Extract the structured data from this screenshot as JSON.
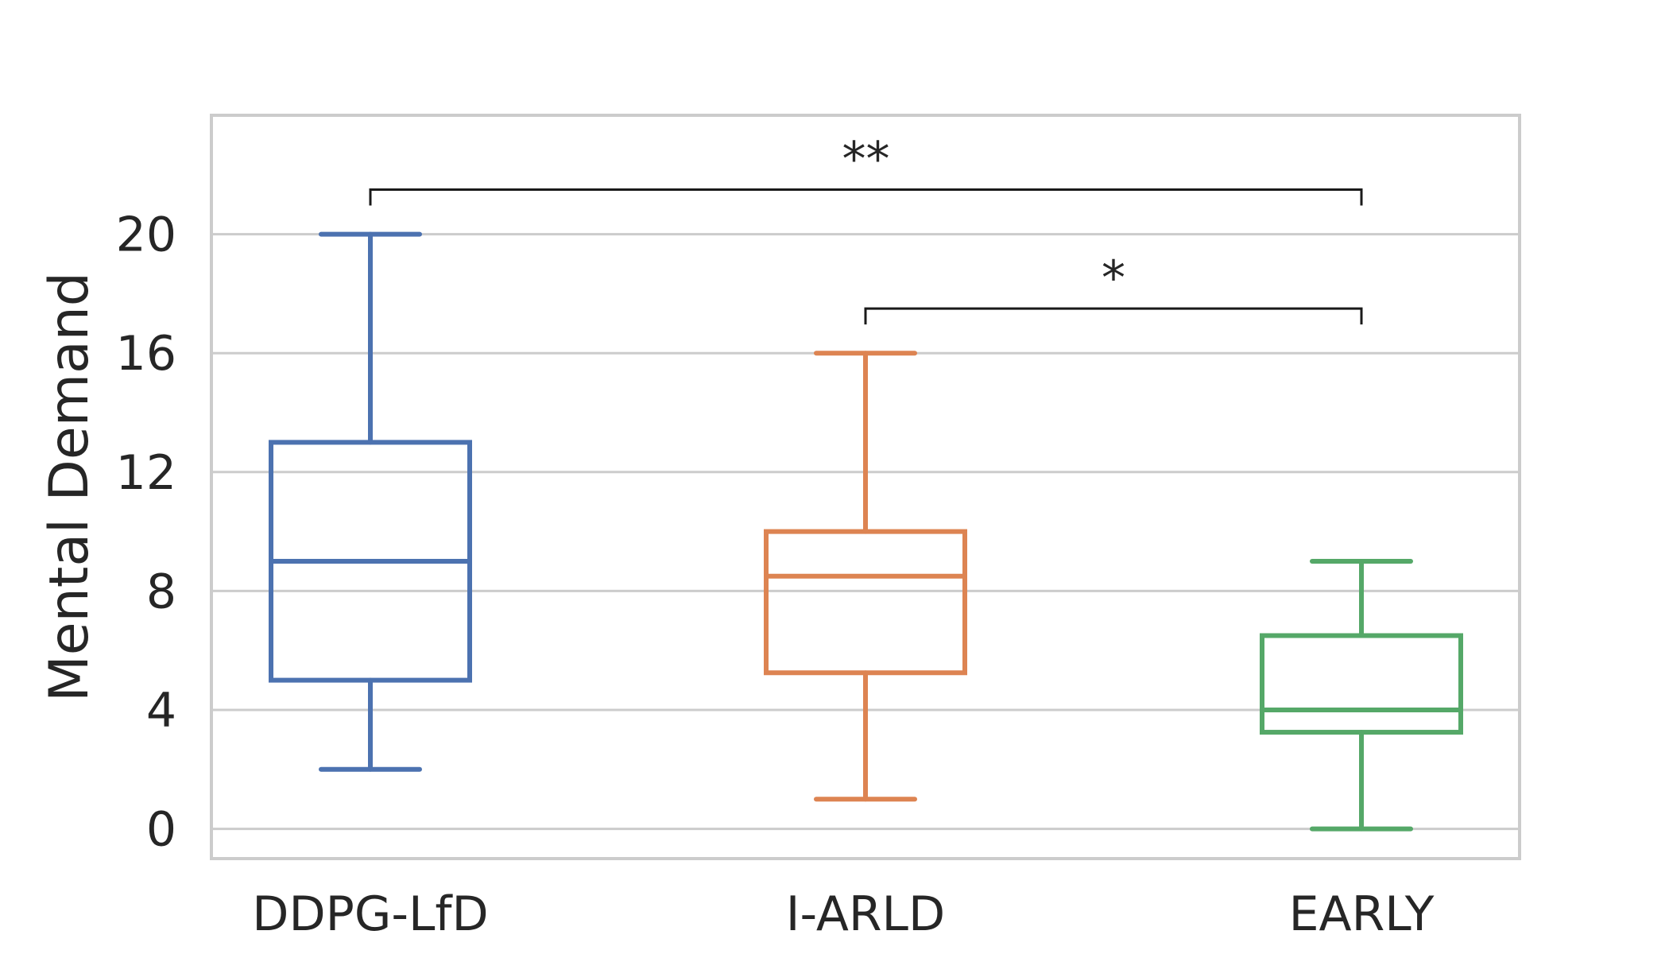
{
  "chart_data": {
    "type": "box",
    "ylabel": "Mental Demand",
    "xlabel": "",
    "ylim": [
      -1,
      24
    ],
    "yticks": [
      0,
      4,
      8,
      12,
      16,
      20
    ],
    "grid": "horizontal",
    "categories": [
      "DDPG-LfD",
      "I-ARLD",
      "EARLY"
    ],
    "boxes": [
      {
        "category": "DDPG-LfD",
        "color": "#4c72b0",
        "whisker_low": 2,
        "q1": 5,
        "median": 9,
        "q3": 13,
        "whisker_high": 20
      },
      {
        "category": "I-ARLD",
        "color": "#dd8452",
        "whisker_low": 1,
        "q1": 5.25,
        "median": 8.5,
        "q3": 10,
        "whisker_high": 16
      },
      {
        "category": "EARLY",
        "color": "#55a868",
        "whisker_low": 0,
        "q1": 3.25,
        "median": 4,
        "q3": 6.5,
        "whisker_high": 9
      }
    ],
    "significance": [
      {
        "from": "DDPG-LfD",
        "to": "EARLY",
        "label": "**",
        "y": 21.5
      },
      {
        "from": "I-ARLD",
        "to": "EARLY",
        "label": "*",
        "y": 17.5
      }
    ]
  }
}
